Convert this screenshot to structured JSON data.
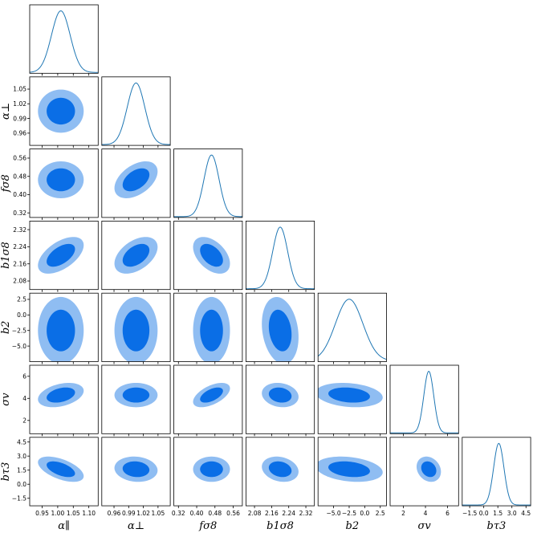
{
  "chart_data": {
    "type": "corner",
    "params": [
      {
        "key": "alpha_par",
        "label": "α∥",
        "mean": 1.01,
        "sigma": 0.03,
        "range": [
          0.91,
          1.13
        ],
        "ticks": [
          "0.95",
          "1.00",
          "1.05",
          "1.10"
        ]
      },
      {
        "key": "alpha_perp",
        "label": "α⊥",
        "mean": 1.005,
        "sigma": 0.018,
        "range": [
          0.935,
          1.075
        ],
        "ticks": [
          "0.96",
          "0.99",
          "1.02",
          "1.05"
        ]
      },
      {
        "key": "fsigma8",
        "label": "fσ8",
        "mean": 0.465,
        "sigma": 0.033,
        "range": [
          0.3,
          0.6
        ],
        "ticks": [
          "0.32",
          "0.40",
          "0.48",
          "0.56"
        ]
      },
      {
        "key": "b1sigma8",
        "label": "b1σ8",
        "mean": 2.2,
        "sigma": 0.035,
        "range": [
          2.04,
          2.36
        ],
        "ticks": [
          "2.08",
          "2.16",
          "2.24",
          "2.32"
        ]
      },
      {
        "key": "b2",
        "label": "b2",
        "mean": -2.5,
        "sigma": 2.2,
        "range": [
          -7.5,
          3.5
        ],
        "ticks": [
          "−5.0",
          "−2.5",
          "0.0",
          "2.5"
        ]
      },
      {
        "key": "sigma_v",
        "label": "σv",
        "mean": 4.3,
        "sigma": 0.45,
        "range": [
          0.8,
          7.0
        ],
        "ticks": [
          "2",
          "4",
          "6"
        ]
      },
      {
        "key": "b_tau3",
        "label": "bτ3",
        "mean": 1.6,
        "sigma": 0.55,
        "range": [
          -2.3,
          5.0
        ],
        "ticks": [
          "−1.5",
          "0.0",
          "1.5",
          "3.0",
          "4.5"
        ]
      }
    ],
    "correlations": [
      [
        1,
        0,
        0,
        0,
        0,
        0,
        0
      ],
      [
        0,
        1,
        0,
        0,
        0,
        0,
        0
      ],
      [
        0,
        0.45,
        1,
        0,
        0,
        0,
        0
      ],
      [
        0.55,
        0.45,
        -0.45,
        1,
        0,
        0,
        0
      ],
      [
        0,
        0,
        0,
        -0.2,
        1,
        0,
        0
      ],
      [
        0.35,
        0,
        0.55,
        -0.15,
        -0.2,
        1,
        0
      ],
      [
        -0.55,
        -0.1,
        0,
        -0.2,
        -0.25,
        -0.2,
        1
      ]
    ],
    "contour_levels": [
      "68%",
      "95%"
    ],
    "colors": {
      "inner": "#0a6ee6",
      "outer": "#8fbdf2",
      "line": "#1f77b4"
    }
  }
}
